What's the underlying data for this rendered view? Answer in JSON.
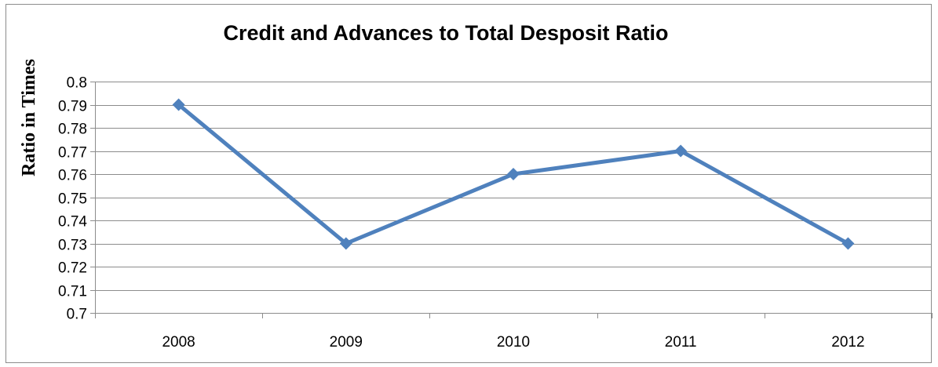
{
  "chart_data": {
    "type": "line",
    "title": "Credit and Advances to Total Desposit Ratio",
    "xlabel": "",
    "ylabel": "Ratio in Times",
    "categories": [
      "2008",
      "2009",
      "2010",
      "2011",
      "2012"
    ],
    "series": [
      {
        "values": [
          0.79,
          0.73,
          0.76,
          0.77,
          0.73
        ],
        "color": "#4f81bd",
        "marker": "diamond"
      }
    ],
    "ylim": [
      0.7,
      0.8
    ],
    "yticks": [
      "0.8",
      "0.79",
      "0.78",
      "0.77",
      "0.76",
      "0.75",
      "0.74",
      "0.73",
      "0.72",
      "0.71",
      "0.7"
    ],
    "grid": true,
    "legend": "none",
    "colors": {
      "gridline": "#8c8c8c",
      "axis": "#8c8c8c"
    }
  }
}
